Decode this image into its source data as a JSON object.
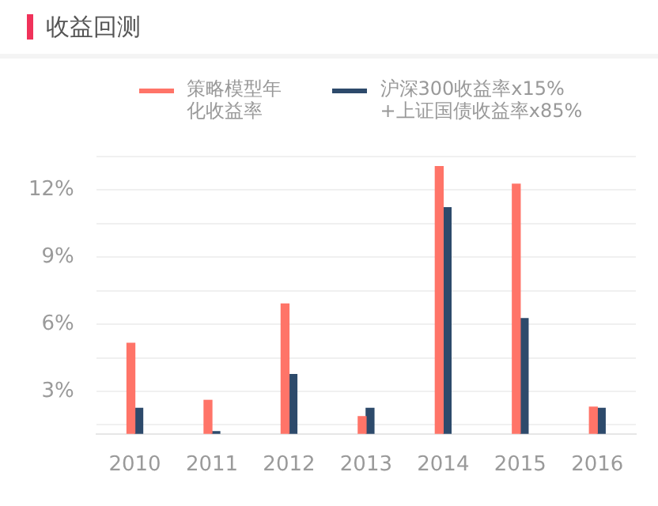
{
  "chart_data": {
    "type": "bar",
    "title": "收益回测",
    "categories": [
      "2010",
      "2011",
      "2012",
      "2013",
      "2014",
      "2015",
      "2016"
    ],
    "series": [
      {
        "name": "策略模型年化收益率",
        "color": "#ff7468",
        "values": [
          5.15,
          2.6,
          6.9,
          1.87,
          13.04,
          12.25,
          2.3
        ]
      },
      {
        "name": "沪深300收益率x15%+上证国债收益率x85%",
        "color": "#2d4a6b",
        "values": [
          2.24,
          1.2,
          3.75,
          2.24,
          11.2,
          6.25,
          2.24
        ]
      }
    ],
    "ylim": [
      1.1,
      13.5
    ],
    "yticks": [
      {
        "value": 1.5,
        "label": null
      },
      {
        "value": 3,
        "label": "3%"
      },
      {
        "value": 4.5,
        "label": null
      },
      {
        "value": 6,
        "label": "6%"
      },
      {
        "value": 7.5,
        "label": null
      },
      {
        "value": 9,
        "label": "9%"
      },
      {
        "value": 10.5,
        "label": null
      },
      {
        "value": 12,
        "label": "12%"
      },
      {
        "value": 13.5,
        "label": null
      }
    ],
    "grid": "y",
    "legend": "top"
  }
}
